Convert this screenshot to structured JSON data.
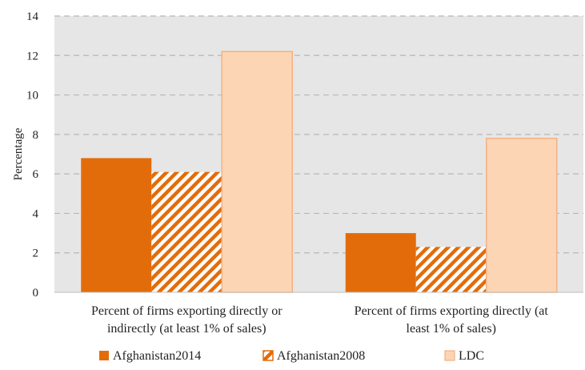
{
  "chart_data": {
    "type": "bar",
    "categories": [
      "Percent of firms exporting directly or indirectly (at least 1% of sales)",
      "Percent of firms exporting directly (at least 1% of sales)"
    ],
    "category_lines": [
      [
        "Percent of firms exporting directly or",
        "indirectly (at least 1% of sales)"
      ],
      [
        "Percent of firms exporting directly (at",
        "least 1% of sales)"
      ]
    ],
    "series": [
      {
        "name": "Afghanistan2014",
        "values": [
          6.8,
          3.0
        ],
        "color": "#e36c0a",
        "pattern": "solid"
      },
      {
        "name": "Afghanistan2008",
        "values": [
          6.1,
          2.3
        ],
        "color": "#e36c0a",
        "pattern": "diagonal-hatch"
      },
      {
        "name": "LDC",
        "values": [
          12.2,
          7.8
        ],
        "color": "#fcd5b5",
        "pattern": "solid"
      }
    ],
    "title": "",
    "xlabel": "",
    "ylabel": "Percentage",
    "ylim": [
      0,
      14
    ],
    "yticks": [
      0,
      2,
      4,
      6,
      8,
      10,
      12,
      14
    ],
    "grid": true,
    "legend_position": "bottom",
    "plot_background": "#e6e6e6",
    "ldc_border_color": "#f4b183"
  }
}
